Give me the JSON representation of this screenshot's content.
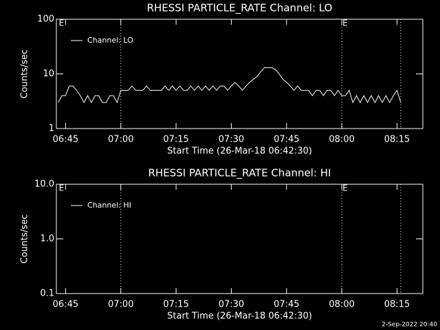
{
  "chart_data": [
    {
      "type": "line",
      "title": "RHESSI PARTICLE_RATE Channel: LO",
      "xlabel": "Start Time (26-Mar-18 06:42:30)",
      "ylabel": "Counts/sec",
      "log_y": true,
      "legend": "upper left",
      "xlim": [
        "06:42:30",
        "08:22:00"
      ],
      "xticks": [
        "06:45",
        "07:00",
        "07:15",
        "07:30",
        "07:45",
        "08:00",
        "08:15"
      ],
      "ylim": [
        1,
        100
      ],
      "yticks": [
        1,
        10,
        100
      ],
      "vlines": [
        "07:00",
        "08:00",
        "08:16"
      ],
      "annotations": [
        {
          "x": "06:43",
          "text": "E"
        },
        {
          "x": "08:00",
          "text": "E"
        }
      ],
      "x": [
        "06:43",
        "06:44",
        "06:45",
        "06:46",
        "06:47",
        "06:48",
        "06:49",
        "06:50",
        "06:51",
        "06:52",
        "06:53",
        "06:54",
        "06:55",
        "06:56",
        "06:57",
        "06:58",
        "06:59",
        "07:00",
        "07:01",
        "07:02",
        "07:03",
        "07:04",
        "07:05",
        "07:06",
        "07:07",
        "07:08",
        "07:09",
        "07:10",
        "07:11",
        "07:12",
        "07:13",
        "07:14",
        "07:15",
        "07:16",
        "07:17",
        "07:18",
        "07:19",
        "07:20",
        "07:21",
        "07:22",
        "07:23",
        "07:24",
        "07:25",
        "07:26",
        "07:27",
        "07:28",
        "07:29",
        "07:30",
        "07:31",
        "07:32",
        "07:33",
        "07:34",
        "07:35",
        "07:36",
        "07:37",
        "07:38",
        "07:39",
        "07:40",
        "07:41",
        "07:42",
        "07:43",
        "07:44",
        "07:45",
        "07:46",
        "07:47",
        "07:48",
        "07:49",
        "07:50",
        "07:51",
        "07:52",
        "07:53",
        "07:54",
        "07:55",
        "07:56",
        "07:57",
        "07:58",
        "07:59",
        "08:00",
        "08:01",
        "08:02",
        "08:03",
        "08:04",
        "08:05",
        "08:06",
        "08:07",
        "08:08",
        "08:09",
        "08:10",
        "08:11",
        "08:12",
        "08:13",
        "08:14",
        "08:15",
        "08:16"
      ],
      "series": [
        {
          "name": "Channel: LO",
          "color": "#ffffff",
          "values": [
            3,
            4,
            4,
            6,
            6,
            5,
            4,
            3,
            4,
            3,
            4,
            4,
            3,
            3,
            4,
            4,
            3,
            5,
            5,
            5,
            6,
            5,
            5,
            5,
            6,
            5,
            5,
            5,
            5,
            6,
            5,
            6,
            5,
            6,
            5,
            5,
            6,
            5,
            6,
            5,
            6,
            5,
            6,
            5,
            6,
            6,
            5,
            6,
            7,
            6,
            5,
            6,
            7,
            8,
            9,
            11,
            13,
            13,
            13,
            12,
            10,
            8,
            7,
            6,
            5,
            6,
            5,
            5,
            5,
            4,
            5,
            5,
            4,
            5,
            5,
            4,
            5,
            4,
            4,
            5,
            3,
            4,
            3,
            4,
            3,
            4,
            3,
            4,
            3,
            4,
            3,
            4,
            5,
            3
          ]
        }
      ]
    },
    {
      "type": "line",
      "title": "RHESSI PARTICLE_RATE Channel: HI",
      "xlabel": "Start Time (26-Mar-18 06:42:30)",
      "ylabel": "Counts/sec",
      "log_y": true,
      "legend": "upper left",
      "xlim": [
        "06:42:30",
        "08:22:00"
      ],
      "xticks": [
        "06:45",
        "07:00",
        "07:15",
        "07:30",
        "07:45",
        "08:00",
        "08:15"
      ],
      "ylim": [
        0.1,
        10
      ],
      "yticks": [
        0.1,
        {
          "value": 1,
          "label": "1.0"
        },
        {
          "value": 10,
          "label": "10.0"
        }
      ],
      "vlines": [
        "07:00",
        "08:00",
        "08:16"
      ],
      "annotations": [
        {
          "x": "06:43",
          "text": "E"
        },
        {
          "x": "08:00",
          "text": "E"
        }
      ],
      "x": [],
      "series": [
        {
          "name": "Channel: HI",
          "color": "#ffffff",
          "values": []
        }
      ]
    }
  ],
  "footer": "2-Sep-2022 20:40"
}
